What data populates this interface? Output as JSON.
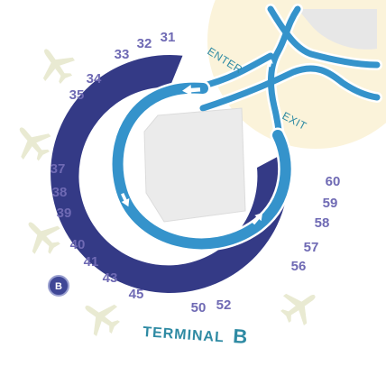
{
  "map": {
    "terminal_label": {
      "prefix": "TERMINAL",
      "letter": "B"
    },
    "badge": "B",
    "roads": {
      "enter": "ENTER",
      "exit": "EXIT"
    },
    "gates": [
      "31",
      "32",
      "33",
      "34",
      "35",
      "37",
      "38",
      "39",
      "40",
      "41",
      "43",
      "45",
      "50",
      "52",
      "56",
      "57",
      "58",
      "59",
      "60"
    ]
  },
  "colors": {
    "concourse": "#343a86",
    "roadway": "#3593cb",
    "roadway_edge": "#ffffff",
    "apron": "#ebebeb",
    "apron_outline": "#dcdcdc",
    "sand": "#fbf3da",
    "gray_area": "#e7e7e7",
    "gate_text": "#6f6ab4",
    "label_text": "#2e8aa3",
    "airplane": "#e9ead2"
  },
  "icons": [
    "airplane-icon",
    "direction-arrow-icon"
  ]
}
